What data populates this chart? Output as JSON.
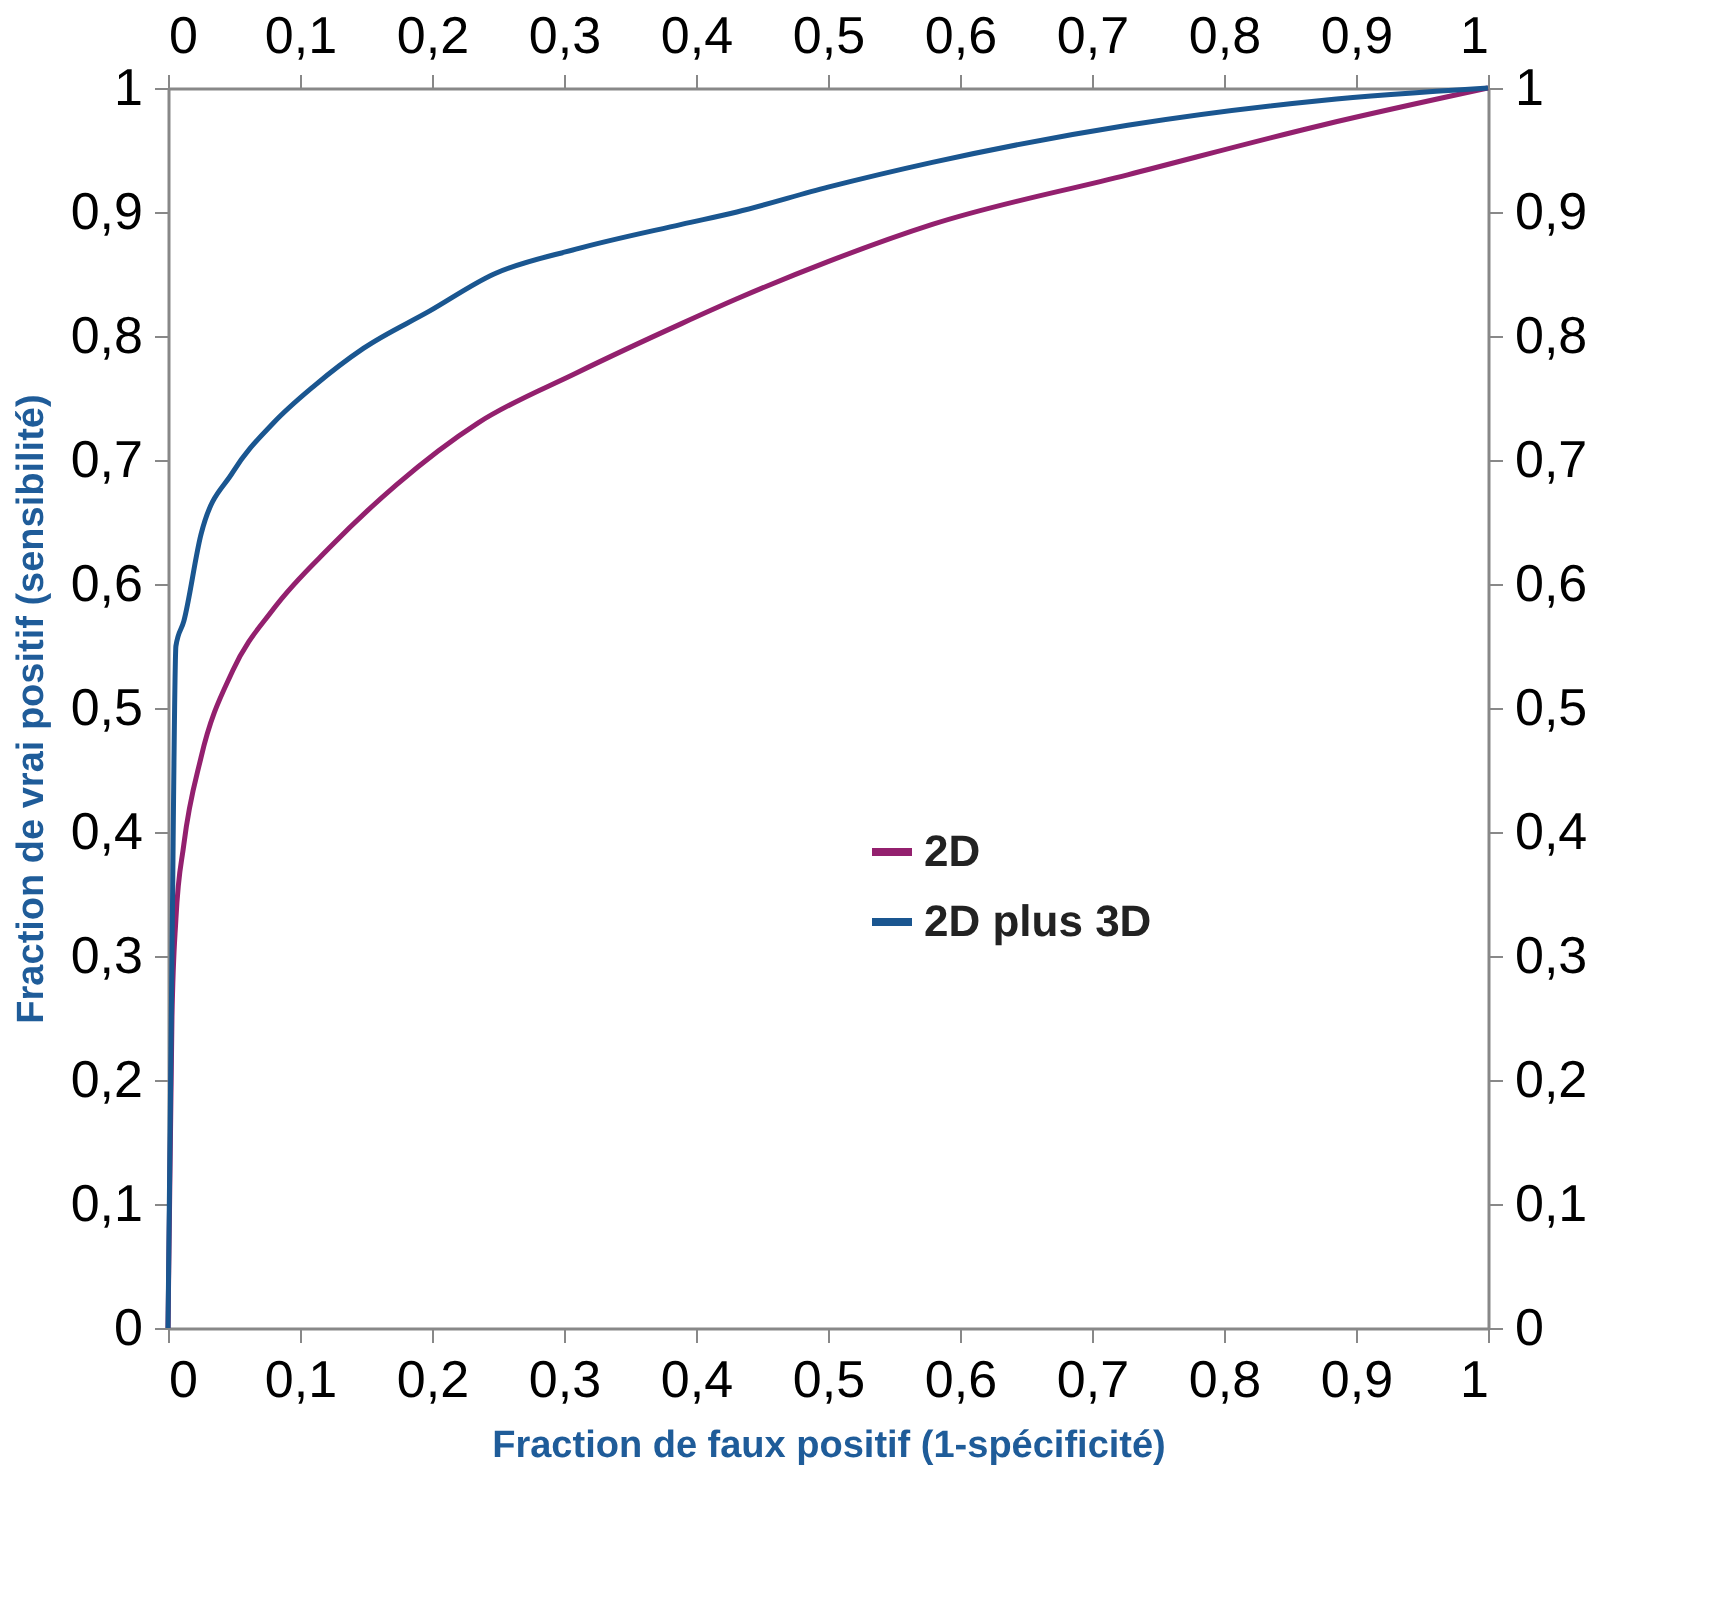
{
  "chart_data": {
    "type": "line",
    "xlabel": "Fraction de faux positif (1-spécificité)",
    "ylabel": "Fraction de vrai positif (sensibilité)",
    "xlim": [
      0,
      1
    ],
    "ylim": [
      0,
      1
    ],
    "x2lim": [
      0,
      1
    ],
    "y2lim": [
      0,
      1
    ],
    "xticks": [
      0,
      {
        "value": 0.1,
        "label": "0,1"
      },
      {
        "value": 0.2,
        "label": "0,2"
      },
      {
        "value": 0.3,
        "label": "0,3"
      },
      {
        "value": 0.4,
        "label": "0,4"
      },
      {
        "value": 0.5,
        "label": "0,5"
      },
      {
        "value": 0.6,
        "label": "0,6"
      },
      {
        "value": 0.7,
        "label": "0,7"
      },
      {
        "value": 0.8,
        "label": "0,8"
      },
      {
        "value": 0.9,
        "label": "0,9"
      },
      1
    ],
    "x2ticks": [
      0,
      {
        "value": 0.1,
        "label": "0,1"
      },
      {
        "value": 0.2,
        "label": "0,2"
      },
      {
        "value": 0.3,
        "label": "0,3"
      },
      {
        "value": 0.4,
        "label": "0,4"
      },
      {
        "value": 0.5,
        "label": "0,5"
      },
      {
        "value": 0.6,
        "label": "0,6"
      },
      {
        "value": 0.7,
        "label": "0,7"
      },
      {
        "value": 0.8,
        "label": "0,8"
      },
      {
        "value": 0.9,
        "label": "0,9"
      },
      1
    ],
    "yticks": [
      0,
      {
        "value": 0.1,
        "label": "0,1"
      },
      {
        "value": 0.2,
        "label": "0,2"
      },
      {
        "value": 0.3,
        "label": "0,3"
      },
      {
        "value": 0.4,
        "label": "0,4"
      },
      {
        "value": 0.5,
        "label": "0,5"
      },
      {
        "value": 0.6,
        "label": "0,6"
      },
      {
        "value": 0.7,
        "label": "0,7"
      },
      {
        "value": 0.8,
        "label": "0,8"
      },
      {
        "value": 0.9,
        "label": "0,9"
      },
      1
    ],
    "y2ticks": [
      0,
      {
        "value": 0.1,
        "label": "0,1"
      },
      {
        "value": 0.2,
        "label": "0,2"
      },
      {
        "value": 0.3,
        "label": "0,3"
      },
      {
        "value": 0.4,
        "label": "0,4"
      },
      {
        "value": 0.5,
        "label": "0,5"
      },
      {
        "value": 0.6,
        "label": "0,6"
      },
      {
        "value": 0.7,
        "label": "0,7"
      },
      {
        "value": 0.8,
        "label": "0,8"
      },
      {
        "value": 0.9,
        "label": "0,9"
      },
      1
    ],
    "grid": false,
    "legend": "right",
    "marker": "none",
    "line_style": "solid",
    "series": [
      {
        "name": "2D",
        "color": "#93206e",
        "x": [
          0,
          0.003,
          0.006,
          0.012,
          0.025,
          0.049,
          0.08,
          0.123,
          0.173,
          0.235,
          0.309,
          0.389,
          0.431,
          0.5,
          0.579,
          0.727,
          0.874,
          1
        ],
        "values": [
          0,
          0.25,
          0.33,
          0.39,
          0.46,
          0.53,
          0.58,
          0.63,
          0.68,
          0.73,
          0.77,
          0.81,
          0.83,
          0.86,
          0.89,
          0.93,
          0.97,
          1
        ]
      },
      {
        "name": "2D plus 3D",
        "color": "#1a5690",
        "x": [
          0,
          0.003,
          0.006,
          0.012,
          0.025,
          0.049,
          0.08,
          0.111,
          0.148,
          0.198,
          0.247,
          0.309,
          0.389,
          0.431,
          0.5,
          0.579,
          0.727,
          0.874,
          1
        ],
        "values": [
          0,
          0.3,
          0.55,
          0.57,
          0.64,
          0.69,
          0.73,
          0.76,
          0.79,
          0.82,
          0.85,
          0.87,
          0.89,
          0.9,
          0.92,
          0.94,
          0.97,
          0.99,
          1
        ]
      }
    ]
  }
}
